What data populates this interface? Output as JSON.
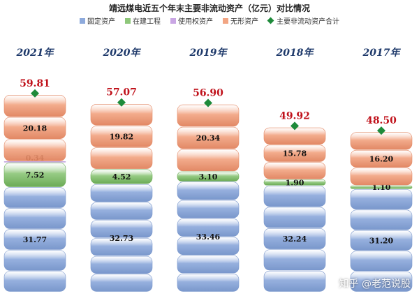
{
  "chart_data": {
    "type": "bar",
    "stacked": true,
    "title": "靖远煤电近五个年末主要非流动资产（亿元）对比情况",
    "categories": [
      "2021年",
      "2020年",
      "2019年",
      "2018年",
      "2017年"
    ],
    "ylim": [
      0,
      62
    ],
    "grid": false,
    "legend_position": "top",
    "series": [
      {
        "name": "固定资产",
        "color": "#8eaadc",
        "values": [
          31.77,
          32.73,
          33.46,
          32.24,
          31.2
        ]
      },
      {
        "name": "在建工程",
        "color": "#8ec77a",
        "values": [
          7.52,
          4.52,
          3.1,
          1.9,
          1.1
        ]
      },
      {
        "name": "使用权资产",
        "color": "#c9a6e4",
        "values": [
          0.34,
          0,
          0,
          0,
          0
        ]
      },
      {
        "name": "无形资产",
        "color": "#f2a583",
        "values": [
          20.18,
          19.82,
          20.34,
          15.78,
          16.2
        ]
      }
    ],
    "total": {
      "name": "主要非流动资产合计",
      "color": "#1e8a3a",
      "values": [
        59.81,
        57.07,
        56.9,
        49.92,
        48.5
      ]
    },
    "segment_labels": [
      [
        "31.77",
        "7.52",
        "0.34",
        "20.18"
      ],
      [
        "32.73",
        "4.52",
        "",
        "19.82"
      ],
      [
        "33.46",
        "3.10",
        "",
        "20.34"
      ],
      [
        "32.24",
        "1.90",
        "",
        "15.78"
      ],
      [
        "31.20",
        "1.10",
        "",
        "16.20"
      ]
    ],
    "total_labels": [
      "59.81",
      "57.07",
      "56.90",
      "49.92",
      "48.50"
    ]
  },
  "watermark": "知乎 @老范说股"
}
